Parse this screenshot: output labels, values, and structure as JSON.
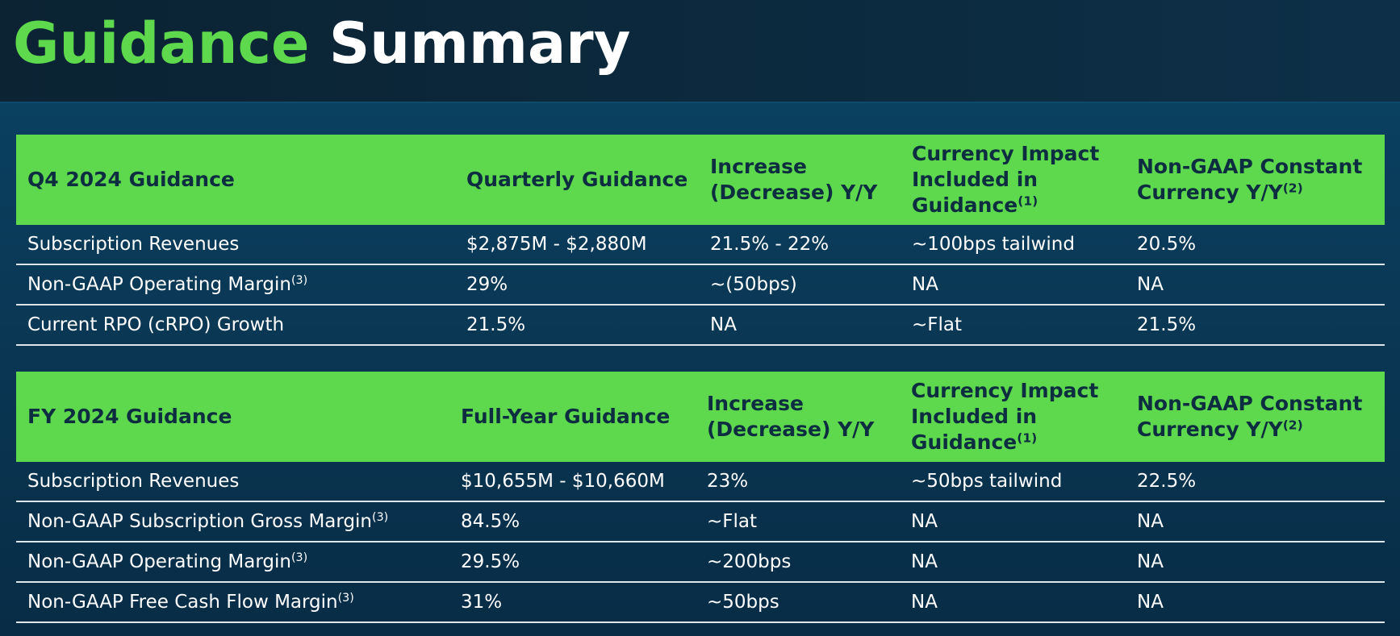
{
  "title": {
    "part1": "Guidance",
    "part2": "Summary"
  },
  "q4": {
    "headers": [
      {
        "text": "Q4 2024 Guidance",
        "sup": ""
      },
      {
        "text": "Quarterly Guidance",
        "sup": ""
      },
      {
        "text": "Increase (Decrease) Y/Y",
        "sup": ""
      },
      {
        "text": "Currency Impact Included in Guidance",
        "sup": "(1)"
      },
      {
        "text": "Non-GAAP Constant Currency Y/Y",
        "sup": "(2)"
      }
    ],
    "rows": [
      {
        "label": "Subscription Revenues",
        "sup": "",
        "values": [
          "$2,875M - $2,880M",
          "21.5% - 22%",
          "~100bps tailwind",
          "20.5%"
        ]
      },
      {
        "label": "Non-GAAP Operating Margin",
        "sup": "(3)",
        "values": [
          "29%",
          "~(50bps)",
          "NA",
          "NA"
        ]
      },
      {
        "label": "Current RPO (cRPO) Growth",
        "sup": "",
        "values": [
          "21.5%",
          "NA",
          "~Flat",
          "21.5%"
        ]
      }
    ]
  },
  "fy": {
    "headers": [
      {
        "text": "FY 2024 Guidance",
        "sup": ""
      },
      {
        "text": "Full-Year Guidance",
        "sup": ""
      },
      {
        "text": "Increase (Decrease) Y/Y",
        "sup": ""
      },
      {
        "text": "Currency Impact Included in Guidance",
        "sup": "(1)"
      },
      {
        "text": "Non-GAAP Constant Currency Y/Y",
        "sup": "(2)"
      }
    ],
    "rows": [
      {
        "label": "Subscription Revenues",
        "sup": "",
        "values": [
          "$10,655M - $10,660M",
          "23%",
          "~50bps tailwind",
          "22.5%"
        ]
      },
      {
        "label": "Non-GAAP Subscription Gross Margin",
        "sup": "(3)",
        "values": [
          "84.5%",
          "~Flat",
          "NA",
          "NA"
        ]
      },
      {
        "label": "Non-GAAP Operating Margin",
        "sup": "(3)",
        "values": [
          "29.5%",
          "~200bps",
          "NA",
          "NA"
        ]
      },
      {
        "label": "Non-GAAP Free Cash Flow Margin",
        "sup": "(3)",
        "values": [
          "31%",
          "~50bps",
          "NA",
          "NA"
        ]
      }
    ]
  }
}
